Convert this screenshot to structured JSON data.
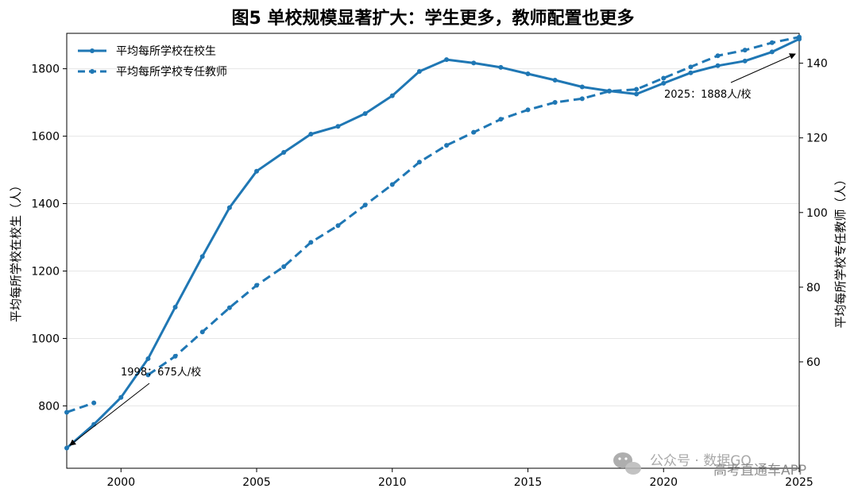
{
  "chart_data": {
    "type": "line",
    "title": "图5 单校规模显著扩大：学生更多，教师配置也更多",
    "xlabel": "",
    "ylabel_left": "平均每所学校在校生（人）",
    "ylabel_right": "平均每所学校专任教师（人）",
    "xlim": [
      1998,
      2025
    ],
    "ylim_left": [
      615,
      1905
    ],
    "ylim_right": [
      31.5,
      148
    ],
    "x_ticks": [
      "2000",
      "2005",
      "2010",
      "2015",
      "2020",
      "2025"
    ],
    "y_left_ticks": [
      "800",
      "1000",
      "1200",
      "1400",
      "1600",
      "1800"
    ],
    "y_right_ticks": [
      "60",
      "80",
      "100",
      "120",
      "140"
    ],
    "grid": "horizontal",
    "legend_position": "top-left",
    "color": "#1f77b4",
    "series": [
      {
        "name": "平均每所学校在校生",
        "axis": "left",
        "style": "solid",
        "x": [
          1998,
          1999,
          2000,
          2001,
          2002,
          2003,
          2004,
          2005,
          2006,
          2007,
          2008,
          2009,
          2010,
          2011,
          2012,
          2013,
          2014,
          2015,
          2016,
          2017,
          2018,
          2019,
          2020,
          2021,
          2022,
          2023,
          2024,
          2025
        ],
        "values": [
          675,
          745,
          825,
          940,
          1093,
          1243,
          1388,
          1496,
          1552,
          1606,
          1629,
          1667,
          1720,
          1792,
          1827,
          1817,
          1804,
          1785,
          1766,
          1746,
          1734,
          1725,
          1757,
          1788,
          1809,
          1823,
          1850,
          1888
        ]
      },
      {
        "name": "平均每所学校专任教师",
        "axis": "right",
        "style": "dashed",
        "segments": [
          {
            "x": [
              1998,
              1999
            ],
            "values": [
              46.5,
              49
            ]
          },
          {
            "x": [
              2001,
              2002,
              2003,
              2004,
              2005,
              2006,
              2007,
              2008,
              2009,
              2010,
              2011,
              2012,
              2013,
              2014,
              2015,
              2016,
              2017,
              2018,
              2019,
              2020,
              2021,
              2022,
              2023,
              2024,
              2025
            ],
            "values": [
              56.5,
              61.5,
              68,
              74.5,
              80.5,
              85.5,
              92,
              96.5,
              102,
              107.5,
              113.5,
              118,
              121.5,
              125,
              127.5,
              129.5,
              130.5,
              132.5,
              133,
              136,
              139,
              142,
              143.5,
              145.5,
              147
            ]
          }
        ]
      }
    ],
    "annotations": [
      {
        "text": "1998：675人/校"
      },
      {
        "text": "2025：1888人/校"
      }
    ]
  },
  "watermark": {
    "line1": "公众号 · 数据GO",
    "line2": "高考直通车APP"
  }
}
